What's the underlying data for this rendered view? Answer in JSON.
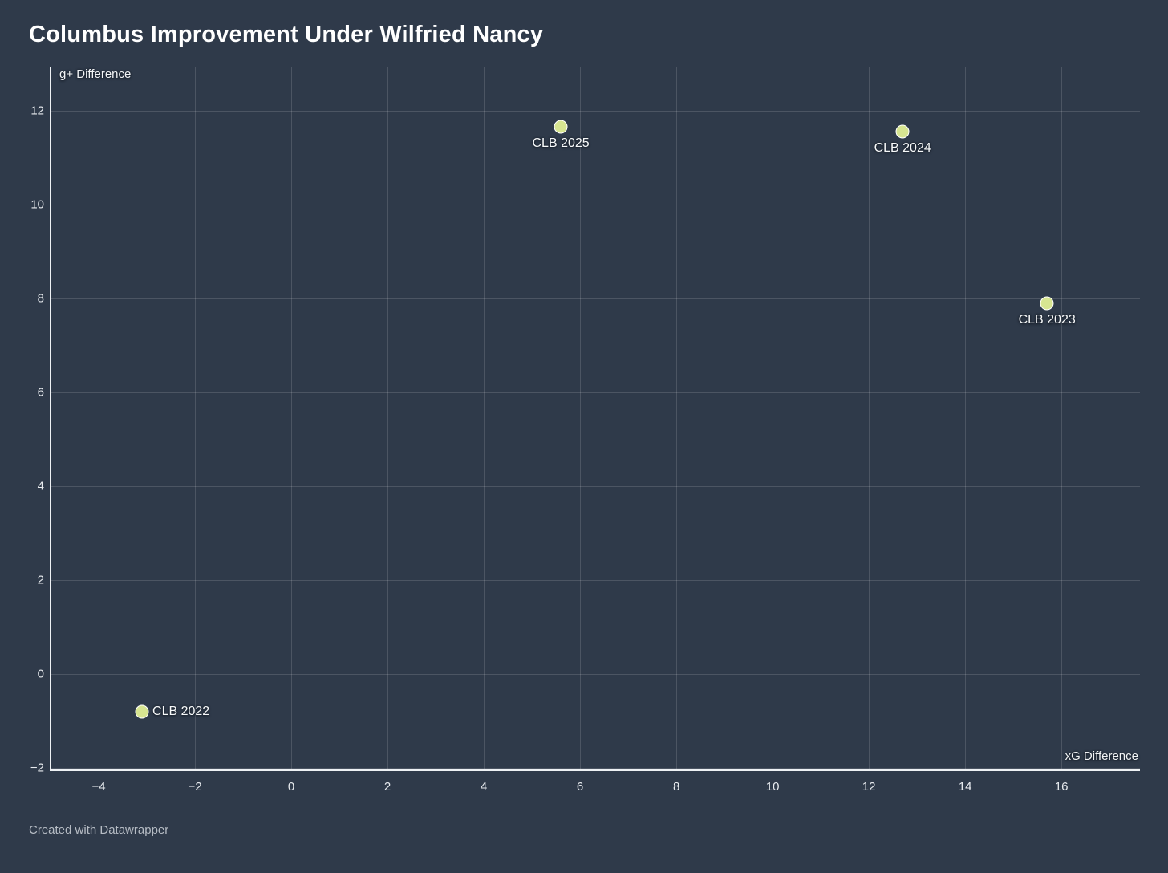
{
  "header": {
    "title": "Columbus Improvement Under Wilfried Nancy"
  },
  "footer": {
    "credit": "Created with Datawrapper"
  },
  "colors": {
    "background": "#2f3a4a",
    "gridline": "rgba(255,255,255,0.14)",
    "axis_line": "#eef1f4",
    "point_fill": "#d7e591",
    "point_border": "#ffffff",
    "text": "#ffffff",
    "tick_text": "#e8ebef",
    "credit_text": "#b6bcc4"
  },
  "chart_data": {
    "type": "scatter",
    "title": "Columbus Improvement Under Wilfried Nancy",
    "xlabel": "xG Difference",
    "ylabel": "g+ Difference",
    "xlim": [
      -5,
      17.63
    ],
    "ylim": [
      -2.05,
      12.92
    ],
    "x_ticks": [
      -4,
      -2,
      0,
      2,
      4,
      6,
      8,
      10,
      12,
      14,
      16
    ],
    "y_ticks": [
      -2,
      0,
      2,
      4,
      6,
      8,
      10,
      12
    ],
    "grid": true,
    "legend": "none",
    "points": [
      {
        "label": "CLB 2022",
        "x": -3.1,
        "y": -0.8,
        "label_position": "right"
      },
      {
        "label": "CLB 2023",
        "x": 15.7,
        "y": 7.9,
        "label_position": "bottom"
      },
      {
        "label": "CLB 2024",
        "x": 12.7,
        "y": 11.55,
        "label_position": "bottom"
      },
      {
        "label": "CLB 2025",
        "x": 5.6,
        "y": 11.65,
        "label_position": "bottom"
      }
    ]
  }
}
